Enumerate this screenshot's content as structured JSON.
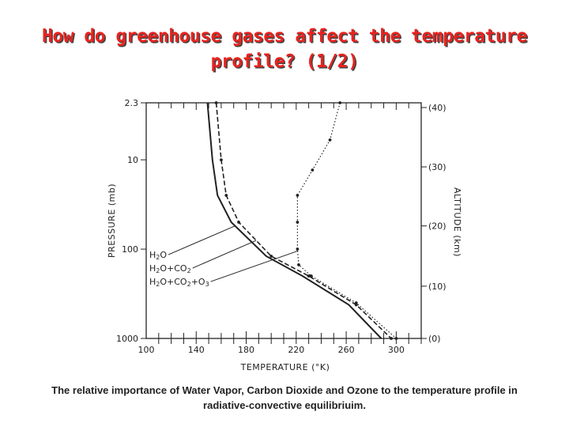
{
  "slide": {
    "title_line1": "How do greenhouse gases affect the temperature",
    "title_line2": "profile? (1/2)",
    "caption_line1": "The relative importance of Water Vapor, Carbon Dioxide and Ozone to the temperature profile in",
    "caption_line2": "radiative-convective equilibriuim."
  },
  "colors": {
    "title": "#e8231f",
    "ink": "#222222"
  },
  "chart_data": {
    "type": "line",
    "xlabel": "TEMPERATURE (°K)",
    "ylabel": "PRESSURE (mb)",
    "y2label": "ALTITUDE (km)",
    "xlim": [
      100,
      320
    ],
    "xticks": [
      100,
      140,
      180,
      220,
      260,
      300
    ],
    "y_scale": "log",
    "ylim": [
      2.3,
      1000
    ],
    "yticks": [
      {
        "value": 2.3,
        "label": "2.3"
      },
      {
        "value": 10,
        "label": "10"
      },
      {
        "value": 100,
        "label": "100"
      },
      {
        "value": 1000,
        "label": "1000"
      }
    ],
    "altitude_ticks": [
      {
        "pressure": 1000,
        "label": "(0)"
      },
      {
        "pressure": 260,
        "label": "(10)"
      },
      {
        "pressure": 55,
        "label": "(20)"
      },
      {
        "pressure": 12,
        "label": "(30)"
      },
      {
        "pressure": 2.6,
        "label": "(40)"
      }
    ],
    "grid": false,
    "series": [
      {
        "name": "H2O",
        "style": "solid",
        "points": [
          [
            149,
            2.3
          ],
          [
            153,
            10
          ],
          [
            157,
            25
          ],
          [
            168,
            50
          ],
          [
            196,
            120
          ],
          [
            225,
            200
          ],
          [
            262,
            420
          ],
          [
            288,
            1000
          ]
        ]
      },
      {
        "name": "H2O+CO2",
        "style": "dashed",
        "points": [
          [
            156,
            2.3
          ],
          [
            160,
            10
          ],
          [
            164,
            25
          ],
          [
            174,
            50
          ],
          [
            200,
            120
          ],
          [
            230,
            200
          ],
          [
            268,
            420
          ],
          [
            296,
            1000
          ]
        ]
      },
      {
        "name": "H2O+CO2+O3",
        "style": "dotted",
        "points": [
          [
            255,
            2.3
          ],
          [
            247,
            6
          ],
          [
            233,
            13
          ],
          [
            221,
            25
          ],
          [
            221,
            50
          ],
          [
            221,
            100
          ],
          [
            222,
            150
          ],
          [
            232,
            200
          ],
          [
            268,
            400
          ],
          [
            300,
            1000
          ]
        ]
      }
    ]
  }
}
